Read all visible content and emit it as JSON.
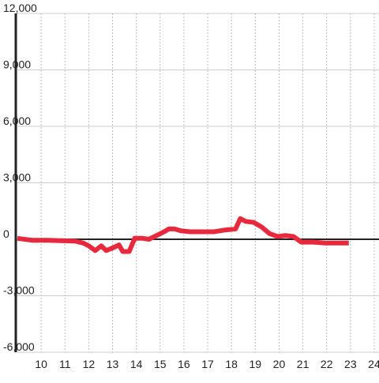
{
  "chart_data": {
    "type": "line",
    "x": [
      9.0,
      9.6,
      10.27,
      10.93,
      11.43,
      11.77,
      12.0,
      12.27,
      12.53,
      12.73,
      13.03,
      13.27,
      13.43,
      13.7,
      13.93,
      14.27,
      14.53,
      14.93,
      15.17,
      15.37,
      15.6,
      15.87,
      16.27,
      17.27,
      17.77,
      18.17,
      18.37,
      18.6,
      18.93,
      19.27,
      19.6,
      19.93,
      20.27,
      20.6,
      20.93,
      21.43,
      21.93,
      22.93
    ],
    "series": [
      {
        "color": "#e8283c",
        "values": [
          50,
          -50,
          -50,
          -80,
          -100,
          -200,
          -350,
          -600,
          -350,
          -600,
          -450,
          -300,
          -650,
          -650,
          50,
          50,
          0,
          250,
          400,
          550,
          550,
          450,
          400,
          400,
          500,
          550,
          1100,
          950,
          900,
          650,
          300,
          150,
          200,
          150,
          -150,
          -150,
          -200,
          -200
        ]
      }
    ],
    "xlim": [
      9,
      24.2
    ],
    "xticks": [
      10,
      11,
      12,
      13,
      14,
      15,
      16,
      17,
      18,
      19,
      20,
      21,
      22,
      23,
      24
    ],
    "ylim": [
      -6000,
      12000
    ],
    "yticks": [
      {
        "value": -6000,
        "label": "-6,000"
      },
      {
        "value": -3000,
        "label": "-3,000"
      },
      0,
      {
        "value": 3000,
        "label": "3,000"
      },
      {
        "value": 6000,
        "label": "6,000"
      },
      {
        "value": 9000,
        "label": "9,000"
      },
      {
        "value": 12000,
        "label": "12,000"
      }
    ],
    "grid": true
  }
}
